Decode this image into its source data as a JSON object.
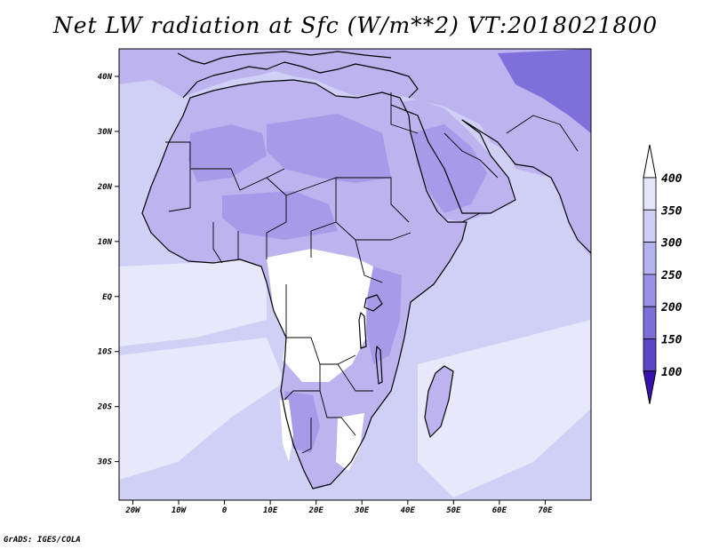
{
  "title": "Net LW radiation at Sfc (W/m**2) VT:2018021800",
  "credit": "GrADS: IGES/COLA",
  "map": {
    "lon_range": [
      -23,
      80
    ],
    "lat_range": [
      -37,
      45
    ],
    "lon_ticks": [
      "20W",
      "10W",
      "0",
      "10E",
      "20E",
      "30E",
      "40E",
      "50E",
      "60E",
      "70E"
    ],
    "lat_ticks": [
      "40N",
      "30N",
      "20N",
      "10N",
      "EQ",
      "10S",
      "20S",
      "30S"
    ]
  },
  "colorbar": {
    "labels": [
      "400",
      "350",
      "300",
      "250",
      "200",
      "150",
      "100"
    ],
    "colors": [
      "#e6e6fa",
      "#cfcff5",
      "#b3b3ef",
      "#9a90e6",
      "#7d6fd9",
      "#5a46c6",
      "#3a10b0"
    ]
  },
  "colors": {
    "ocean": "#d0d0f6",
    "ocean_light": "#e8e8fb",
    "land_dark": "#a79ae9",
    "land_mid": "#bcb3ef",
    "land_white": "#ffffff",
    "himalaya": "#7f6fdb"
  }
}
